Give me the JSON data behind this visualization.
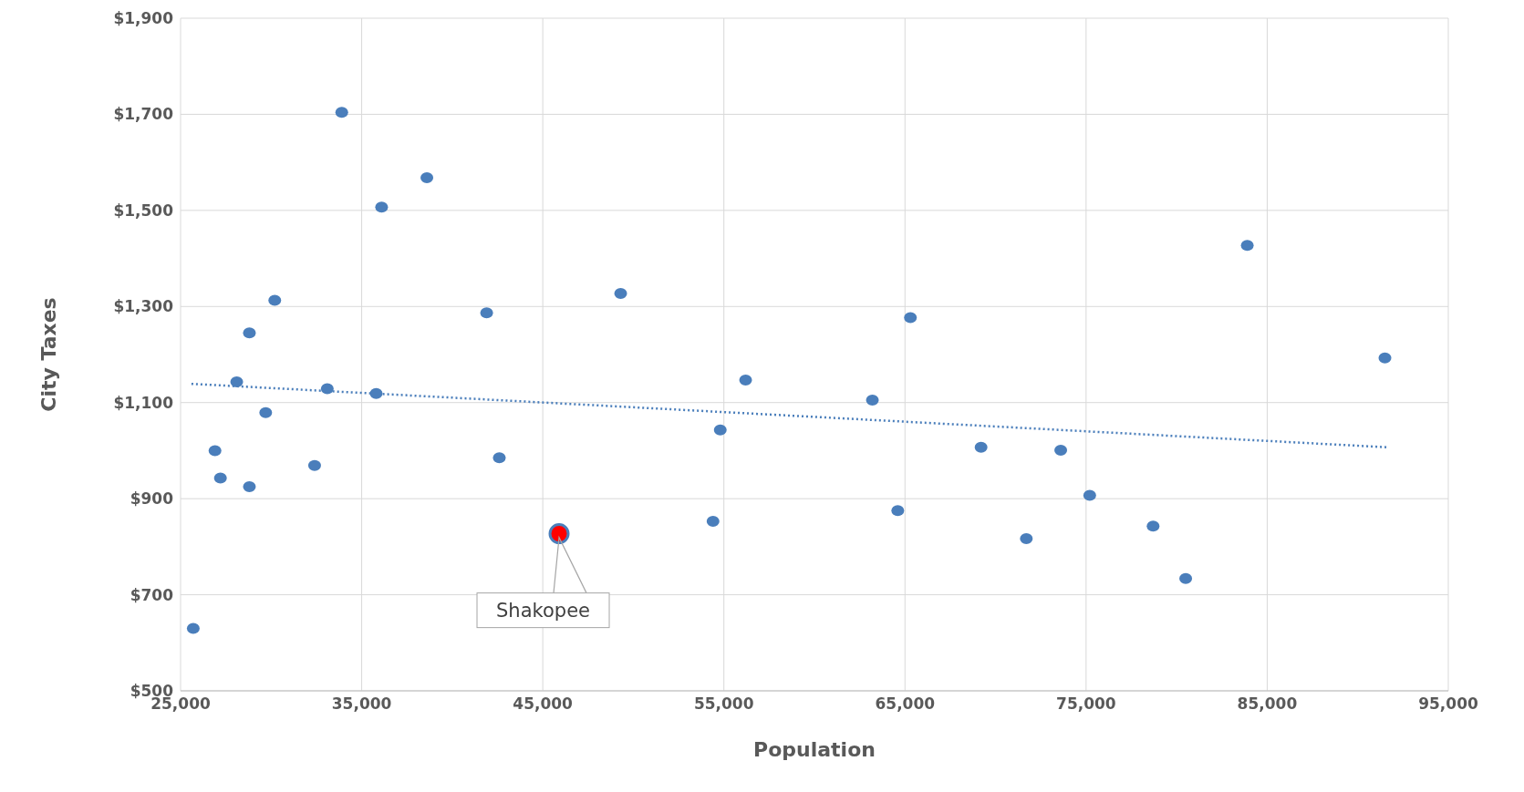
{
  "chart_data": {
    "type": "scatter",
    "xlabel": "Population",
    "ylabel": "City Taxes",
    "xlim": [
      25000,
      95000
    ],
    "xticks": [
      {
        "value": 25000,
        "label": "25,000"
      },
      {
        "value": 35000,
        "label": "35,000"
      },
      {
        "value": 45000,
        "label": "45,000"
      },
      {
        "value": 55000,
        "label": "55,000"
      },
      {
        "value": 65000,
        "label": "65,000"
      },
      {
        "value": 75000,
        "label": "75,000"
      },
      {
        "value": 85000,
        "label": "85,000"
      },
      {
        "value": 95000,
        "label": "95,000"
      }
    ],
    "ylim": [
      500,
      1900
    ],
    "yticks": [
      {
        "value": 500,
        "label": "$500"
      },
      {
        "value": 700,
        "label": "$700"
      },
      {
        "value": 900,
        "label": "$900"
      },
      {
        "value": 1100,
        "label": "$1,100"
      },
      {
        "value": 1300,
        "label": "$1,300"
      },
      {
        "value": 1500,
        "label": "$1,500"
      },
      {
        "value": 1700,
        "label": "$1,700"
      },
      {
        "value": 1900,
        "label": "$1,900"
      }
    ],
    "grid": true,
    "marker": "circle",
    "series": [
      {
        "color": "#4a7ebb",
        "x": [
          25700,
          26900,
          27200,
          28100,
          28800,
          28800,
          29700,
          30200,
          32400,
          33100,
          33900,
          35800,
          36100,
          38600,
          41900,
          42600,
          49300,
          54400,
          54800,
          56200,
          63200,
          64600,
          65300,
          69200,
          71700,
          73600,
          75200,
          78700,
          80500,
          83900,
          91500
        ],
        "values": [
          630,
          1000,
          943,
          1143,
          1245,
          925,
          1079,
          1313,
          969,
          1129,
          1704,
          1119,
          1507,
          1568,
          1287,
          985,
          1327,
          853,
          1043,
          1147,
          1105,
          875,
          1277,
          1007,
          817,
          1001,
          907,
          843,
          734,
          1427,
          1193
        ]
      },
      {
        "name": "Shakopee",
        "color": "#ff0000",
        "x": [
          45900
        ],
        "values": [
          827
        ]
      },
      {
        "type": "line",
        "color": "#4a7ebb",
        "line_style": "dotted",
        "marker": "none",
        "x": [
          25600,
          91600
        ],
        "values": [
          1139,
          1007
        ]
      }
    ]
  }
}
